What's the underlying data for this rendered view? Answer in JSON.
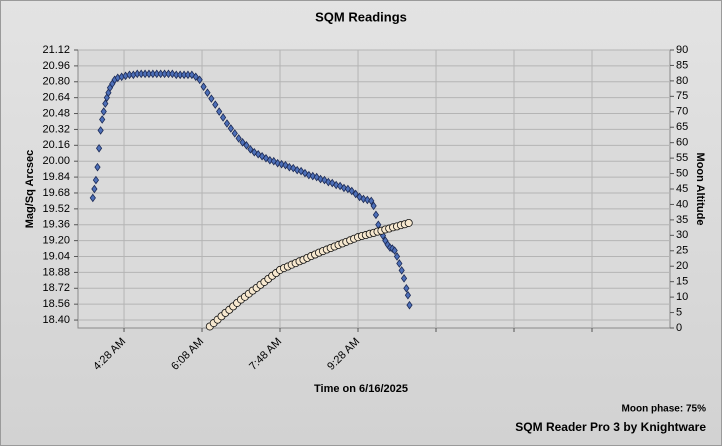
{
  "chart_data": {
    "type": "scatter",
    "title": "SQM Readings",
    "xlabel": "Time on 6/16/2025",
    "ylabel": "Mag/Sq Arcsec",
    "y2label": "Moon Altitude",
    "annotations": [
      "Moon phase: 75%",
      "SQM Reader Pro 3 by Knightware"
    ],
    "xlim": [
      209,
      968
    ],
    "xticks": [
      {
        "value": 268,
        "label": "4:28 AM"
      },
      {
        "value": 368,
        "label": "6:08 AM"
      },
      {
        "value": 468,
        "label": "7:48 AM"
      },
      {
        "value": 568,
        "label": "9:28 AM"
      },
      {
        "value": 668,
        "label": null
      },
      {
        "value": 768,
        "label": null
      },
      {
        "value": 868,
        "label": null
      }
    ],
    "ylim": [
      18.32,
      21.12
    ],
    "yticks": [
      {
        "value": 18.4,
        "label": "18.40"
      },
      18.56,
      18.72,
      18.88,
      19.04,
      {
        "value": 19.2,
        "label": "19.20"
      },
      19.36,
      19.52,
      19.68,
      19.84,
      {
        "value": 20,
        "label": "20.00"
      },
      20.16,
      20.32,
      20.48,
      20.64,
      {
        "value": 20.8,
        "label": "20.80"
      },
      20.96,
      21.12
    ],
    "y2lim": [
      0,
      90
    ],
    "y2ticks": [
      0,
      5,
      10,
      15,
      20,
      25,
      30,
      35,
      40,
      45,
      50,
      55,
      60,
      65,
      70,
      75,
      80,
      85,
      90
    ],
    "grid": true,
    "series": [
      {
        "color": "#4d6fb8",
        "marker": "diamond",
        "x": [
          228,
          230,
          232,
          234,
          236,
          238,
          240,
          242,
          244,
          246,
          248,
          250,
          253,
          256,
          260,
          265,
          270,
          275,
          280,
          285,
          290,
          295,
          300,
          305,
          310,
          315,
          320,
          325,
          330,
          335,
          340,
          345,
          350,
          355,
          360,
          365,
          370,
          375,
          380,
          385,
          390,
          395,
          400,
          405,
          410,
          415,
          420,
          425,
          430,
          435,
          440,
          445,
          450,
          455,
          460,
          465,
          470,
          475,
          480,
          485,
          490,
          495,
          500,
          505,
          510,
          515,
          520,
          525,
          530,
          535,
          540,
          545,
          550,
          555,
          560,
          565,
          570,
          575,
          580,
          585,
          588,
          591,
          594,
          597,
          600,
          603,
          606,
          609,
          612,
          615,
          618,
          621,
          624,
          627,
          630,
          632,
          634
        ],
        "values": [
          19.63,
          19.72,
          19.81,
          19.94,
          20.13,
          20.31,
          20.42,
          20.5,
          20.58,
          20.64,
          20.69,
          20.74,
          20.78,
          20.82,
          20.84,
          20.85,
          20.86,
          20.87,
          20.87,
          20.88,
          20.88,
          20.88,
          20.88,
          20.88,
          20.88,
          20.88,
          20.88,
          20.88,
          20.88,
          20.87,
          20.87,
          20.87,
          20.87,
          20.87,
          20.85,
          20.82,
          20.75,
          20.69,
          20.63,
          20.57,
          20.5,
          20.44,
          20.38,
          20.33,
          20.28,
          20.23,
          20.19,
          20.16,
          20.12,
          20.09,
          20.07,
          20.05,
          20.03,
          20.01,
          20,
          19.98,
          19.97,
          19.96,
          19.94,
          19.93,
          19.91,
          19.9,
          19.88,
          19.86,
          19.85,
          19.84,
          19.82,
          19.81,
          19.79,
          19.78,
          19.76,
          19.75,
          19.73,
          19.72,
          19.7,
          19.67,
          19.64,
          19.62,
          19.61,
          19.6,
          19.55,
          19.46,
          19.36,
          19.3,
          19.25,
          19.2,
          19.16,
          19.13,
          19.12,
          19.1,
          19.04,
          18.97,
          18.9,
          18.82,
          18.72,
          18.65,
          18.55
        ]
      },
      {
        "color": "#f7e8cf",
        "marker": "circle",
        "axis": "y2",
        "x": [
          378,
          383,
          388,
          393,
          398,
          403,
          408,
          413,
          418,
          423,
          428,
          433,
          438,
          443,
          448,
          453,
          458,
          463,
          468,
          473,
          478,
          483,
          488,
          493,
          498,
          503,
          508,
          513,
          518,
          523,
          528,
          533,
          538,
          543,
          548,
          553,
          558,
          563,
          568,
          573,
          578,
          583,
          588,
          593,
          598,
          603,
          608,
          613,
          618,
          623,
          628,
          633
        ],
        "values": [
          0.5,
          1.6,
          2.7,
          3.8,
          4.9,
          5.9,
          7,
          8.1,
          9.2,
          10.1,
          11.1,
          12.1,
          13,
          14,
          14.9,
          15.9,
          16.9,
          17.8,
          18.8,
          19.4,
          19.9,
          20.5,
          21,
          21.6,
          22.1,
          22.7,
          23.3,
          23.8,
          24.4,
          24.9,
          25.4,
          25.9,
          26.4,
          26.9,
          27.4,
          27.9,
          28.4,
          28.9,
          29.4,
          29.8,
          30.1,
          30.5,
          30.8,
          31.2,
          31.5,
          31.9,
          32.2,
          32.6,
          32.9,
          33.3,
          33.6,
          34
        ]
      }
    ]
  }
}
